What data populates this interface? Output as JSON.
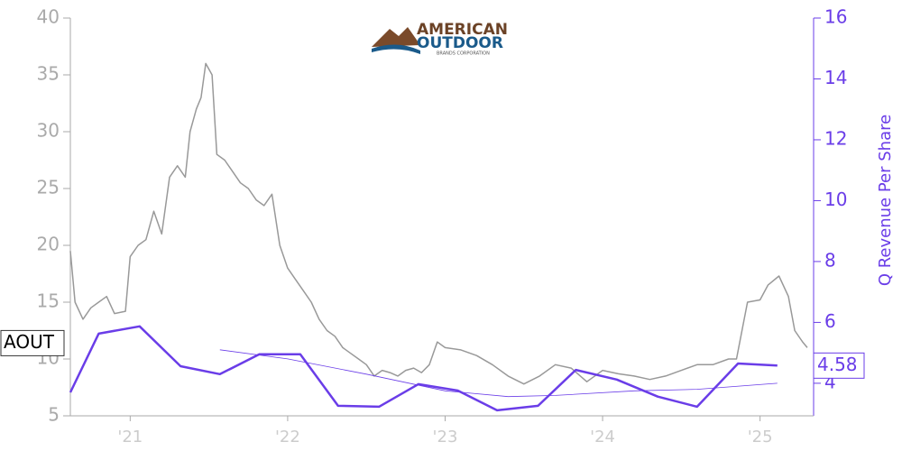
{
  "logo": {
    "line1": "AMERICAN",
    "line2": "OUTDOOR",
    "line3": "BRANDS CORPORATION"
  },
  "chart_data": {
    "type": "line",
    "y2label": "Q Revenue Per Share",
    "xlim": [
      2020.62,
      2025.34
    ],
    "xticks": [
      {
        "value": 2021,
        "label": "'21"
      },
      {
        "value": 2022,
        "label": "'22"
      },
      {
        "value": 2023,
        "label": "'23"
      },
      {
        "value": 2024,
        "label": "'24"
      },
      {
        "value": 2025,
        "label": "'25"
      }
    ],
    "ylim": [
      5,
      40
    ],
    "yticks": [
      5,
      10,
      15,
      20,
      25,
      30,
      35,
      40
    ],
    "y2lim": [
      2.93,
      16
    ],
    "y2ticks": [
      4,
      6,
      8,
      10,
      12,
      14,
      16
    ],
    "series": [
      {
        "name": "AOUT",
        "color": "#999999",
        "width": 1.5,
        "x": [
          2020.62,
          2020.65,
          2020.7,
          2020.75,
          2020.8,
          2020.85,
          2020.9,
          2020.97,
          2021.0,
          2021.05,
          2021.1,
          2021.15,
          2021.2,
          2021.25,
          2021.3,
          2021.35,
          2021.38,
          2021.42,
          2021.45,
          2021.48,
          2021.52,
          2021.55,
          2021.6,
          2021.65,
          2021.7,
          2021.75,
          2021.8,
          2021.85,
          2021.9,
          2021.95,
          2022.0,
          2022.05,
          2022.1,
          2022.15,
          2022.2,
          2022.25,
          2022.3,
          2022.35,
          2022.4,
          2022.45,
          2022.5,
          2022.55,
          2022.6,
          2022.65,
          2022.7,
          2022.75,
          2022.8,
          2022.85,
          2022.9,
          2022.95,
          2023.0,
          2023.1,
          2023.2,
          2023.3,
          2023.4,
          2023.5,
          2023.6,
          2023.7,
          2023.8,
          2023.9,
          2024.0,
          2024.1,
          2024.2,
          2024.3,
          2024.4,
          2024.5,
          2024.6,
          2024.7,
          2024.8,
          2024.85,
          2024.92,
          2025.0,
          2025.05,
          2025.12,
          2025.18,
          2025.22,
          2025.27,
          2025.3
        ],
        "values": [
          19.5,
          15,
          13.5,
          14.5,
          15,
          15.5,
          14,
          14.2,
          19,
          20,
          20.5,
          23,
          21,
          26,
          27,
          26,
          30,
          32,
          33,
          36,
          35,
          28,
          27.5,
          26.5,
          25.5,
          25,
          24,
          23.5,
          24.5,
          20,
          18,
          17,
          16,
          15,
          13.5,
          12.5,
          12,
          11,
          10.5,
          10,
          9.5,
          8.5,
          9,
          8.8,
          8.5,
          9,
          9.2,
          8.8,
          9.5,
          11.5,
          11,
          10.8,
          10.3,
          9.5,
          8.5,
          7.8,
          8.5,
          9.5,
          9.2,
          8,
          9,
          8.7,
          8.5,
          8.2,
          8.5,
          9,
          9.5,
          9.5,
          10,
          10,
          15,
          15.2,
          16.5,
          17.3,
          15.5,
          12.5,
          11.5,
          11
        ]
      },
      {
        "name": "4.58",
        "color": "#6a3de8",
        "width": 2.5,
        "axis": "y2",
        "x": [
          2020.62,
          2020.8,
          2021.06,
          2021.32,
          2021.57,
          2021.82,
          2022.08,
          2022.32,
          2022.58,
          2022.83,
          2023.08,
          2023.33,
          2023.59,
          2023.83,
          2024.09,
          2024.35,
          2024.6,
          2024.86,
          2025.11
        ],
        "values": [
          3.7,
          5.63,
          5.87,
          4.56,
          4.3,
          4.95,
          4.95,
          3.26,
          3.23,
          3.97,
          3.76,
          3.11,
          3.26,
          4.44,
          4.12,
          3.56,
          3.23,
          4.65,
          4.58
        ]
      },
      {
        "color": "#6a3de8",
        "width": 0.8,
        "axis": "y2",
        "x": [
          2021.57,
          2022.0,
          2022.5,
          2023.0,
          2023.4,
          2023.7,
          2024.2,
          2024.6,
          2025.11
        ],
        "values": [
          5.1,
          4.8,
          4.3,
          3.75,
          3.56,
          3.6,
          3.75,
          3.8,
          4.0
        ]
      }
    ]
  }
}
